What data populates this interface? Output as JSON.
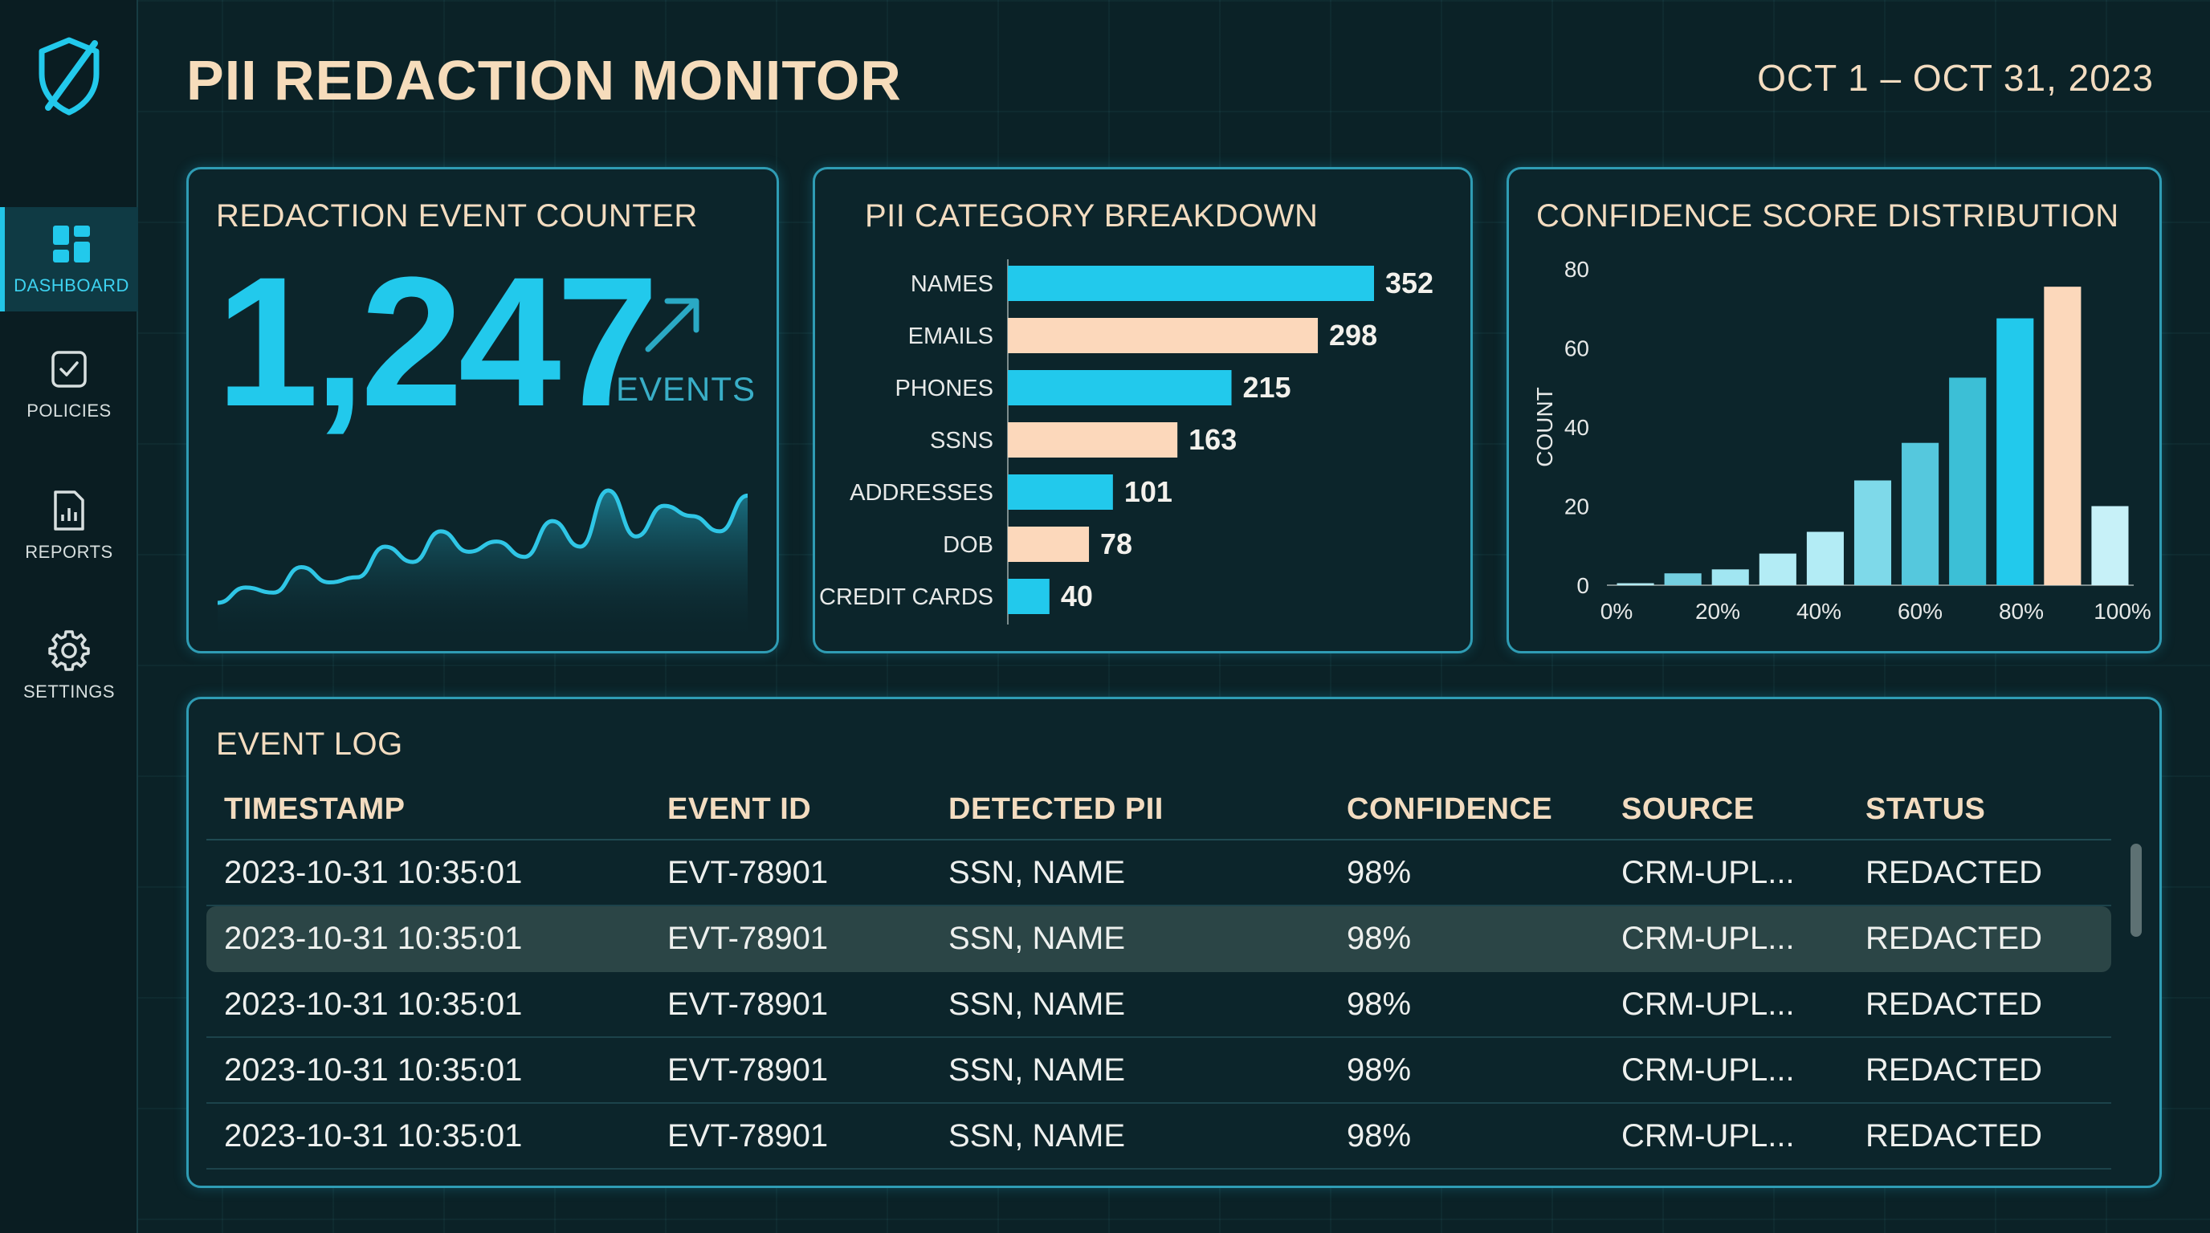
{
  "app": {
    "title": "PII REDACTION MONITOR",
    "date_range": "OCT 1 – OCT 31, 2023",
    "logo_icon": "shield-slash-icon"
  },
  "sidebar": {
    "items": [
      {
        "label": "DASHBOARD",
        "icon": "dashboard-icon",
        "active": true
      },
      {
        "label": "POLICIES",
        "icon": "clipboard-check-icon",
        "active": false
      },
      {
        "label": "REPORTS",
        "icon": "report-chart-icon",
        "active": false
      },
      {
        "label": "SETTINGS",
        "icon": "gear-icon",
        "active": false
      }
    ]
  },
  "colors": {
    "accent": "#22c9ec",
    "peach": "#fcd8bb",
    "background": "#0b2227",
    "panel_border": "#2f9cb4"
  },
  "counter": {
    "title": "REDACTION EVENT COUNTER",
    "value": "1,247",
    "unit": "EVENTS",
    "trend": "up",
    "sparkline": [
      2,
      5,
      4,
      9,
      6,
      7,
      13,
      10,
      16,
      12,
      14,
      11,
      18,
      13,
      24,
      15,
      21,
      19,
      16,
      23
    ]
  },
  "category": {
    "title": "PII CATEGORY BREAKDOWN",
    "chart_data": {
      "type": "bar",
      "orientation": "horizontal",
      "categories": [
        "NAMES",
        "EMAILS",
        "PHONES",
        "SSNS",
        "ADDRESSES",
        "DOB",
        "CREDIT CARDS"
      ],
      "values": [
        352,
        298,
        215,
        163,
        101,
        78,
        40
      ],
      "colors": [
        "#22c9ec",
        "#fcd8bb",
        "#22c9ec",
        "#fcd8bb",
        "#22c9ec",
        "#fcd8bb",
        "#22c9ec"
      ],
      "title": "PII CATEGORY BREAKDOWN",
      "data_labels": true
    }
  },
  "confidence": {
    "title": "CONFIDENCE SCORE DISTRIBUTION",
    "chart_data": {
      "type": "bar",
      "title": "CONFIDENCE SCORE DISTRIBUTION",
      "xlabel": "",
      "ylabel": "COUNT",
      "ylim": [
        0,
        80
      ],
      "yticks": [
        "0",
        "20",
        "40",
        "60",
        "80"
      ],
      "xticks": [
        "0%",
        "20%",
        "40%",
        "60%",
        "80%",
        "100%"
      ],
      "bins": [
        "0-10%",
        "10-20%",
        "20-30%",
        "30-40%",
        "40-50%",
        "50-60%",
        "60-70%",
        "70-80%",
        "80-90%",
        "90-100%",
        "100%"
      ],
      "values": [
        0.5,
        3,
        4,
        8,
        13.5,
        26.5,
        36,
        52.5,
        67.5,
        75.5,
        20
      ],
      "colors": [
        "#b3ecf5",
        "#74cfe0",
        "#a1e6f2",
        "#b3ecf5",
        "#b3ecf5",
        "#7ed9e9",
        "#55c8dd",
        "#3cbfd6",
        "#22c9ec",
        "#fcd8bb",
        "#c7f1f8"
      ],
      "grid": false
    }
  },
  "log": {
    "title": "EVENT LOG",
    "columns": [
      "TIMESTAMP",
      "EVENT ID",
      "DETECTED PII",
      "CONFIDENCE",
      "SOURCE",
      "STATUS"
    ],
    "rows": [
      [
        "2023-10-31 10:35:01",
        "EVT-78901",
        "SSN, NAME",
        "98%",
        "CRM-UPL...",
        "REDACTED"
      ],
      [
        "2023-10-31 10:35:01",
        "EVT-78901",
        "SSN, NAME",
        "98%",
        "CRM-UPL...",
        "REDACTED"
      ],
      [
        "2023-10-31 10:35:01",
        "EVT-78901",
        "SSN, NAME",
        "98%",
        "CRM-UPL...",
        "REDACTED"
      ],
      [
        "2023-10-31 10:35:01",
        "EVT-78901",
        "SSN, NAME",
        "98%",
        "CRM-UPL...",
        "REDACTED"
      ],
      [
        "2023-10-31 10:35:01",
        "EVT-78901",
        "SSN, NAME",
        "98%",
        "CRM-UPL...",
        "REDACTED"
      ]
    ],
    "highlighted_row": 1
  }
}
